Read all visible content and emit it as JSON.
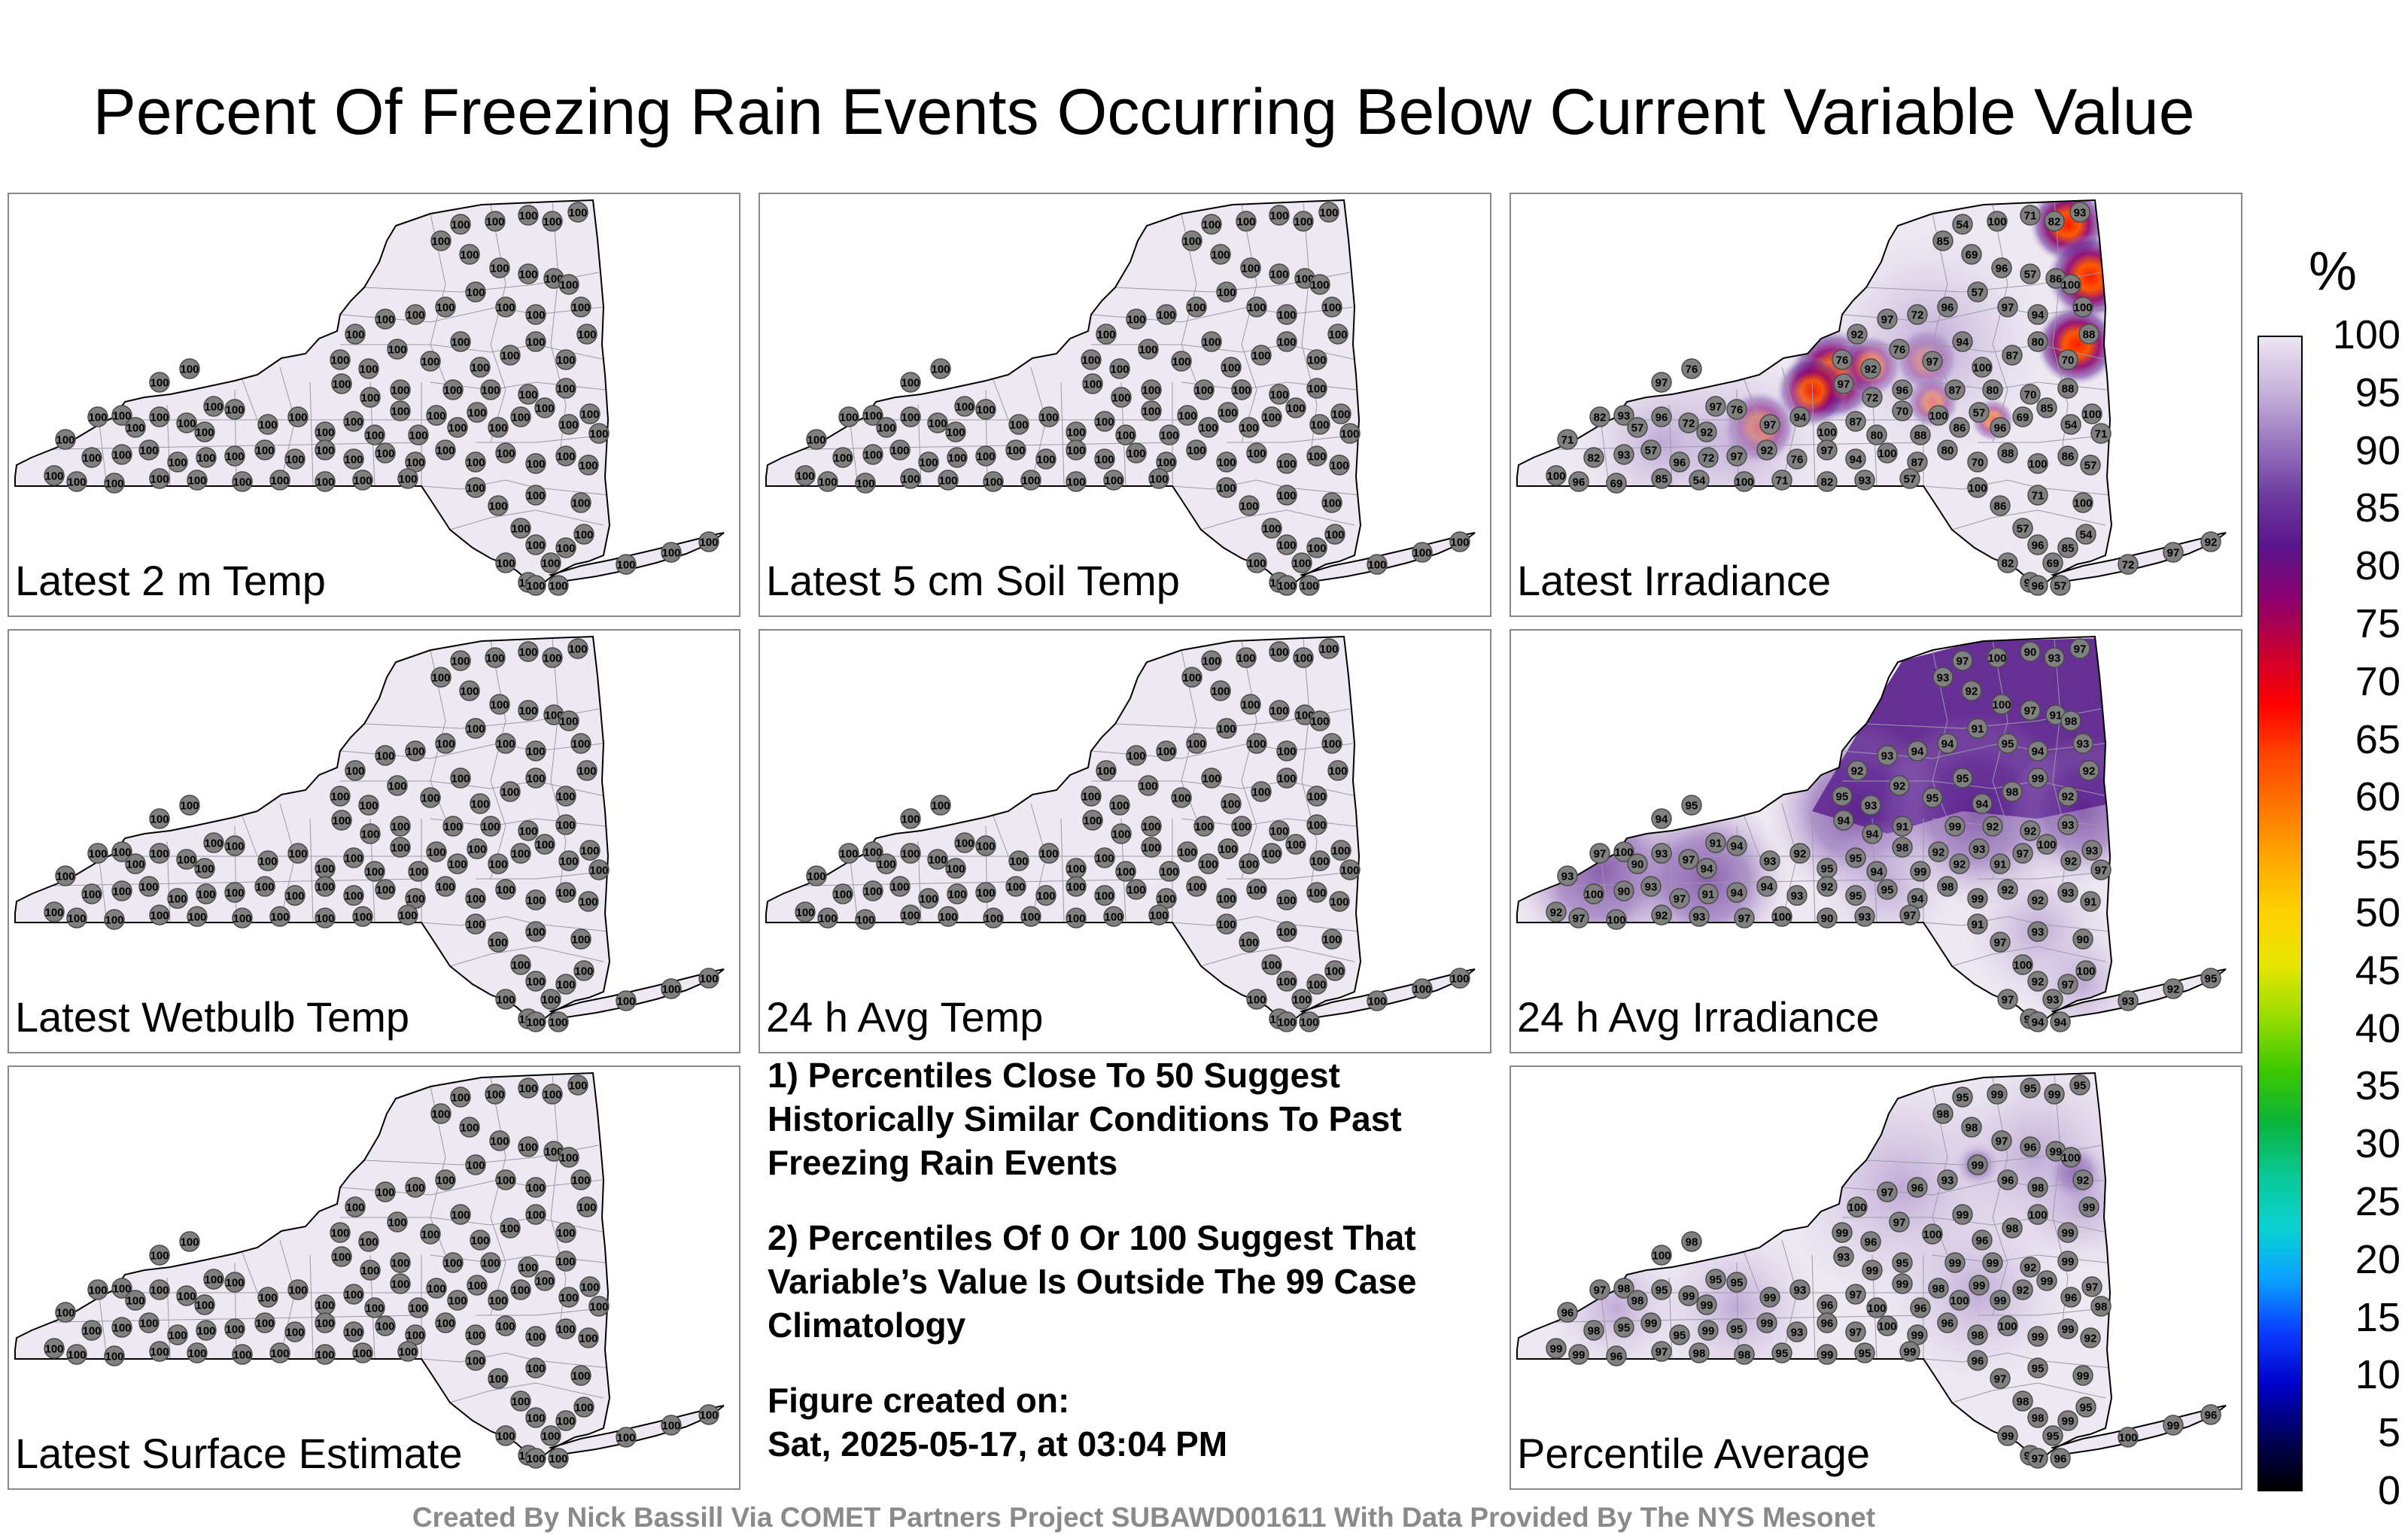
{
  "title": "Percent Of Freezing Rain Events Occurring Below Current Variable Value",
  "panels": [
    {
      "label": "Latest 2 m Temp",
      "mode": "uniform",
      "values": [
        "100"
      ]
    },
    {
      "label": "Latest 5 cm Soil Temp",
      "mode": "uniform",
      "values": [
        "100"
      ]
    },
    {
      "label": "Latest Irradiance",
      "mode": "hot",
      "values": [
        "100",
        "97",
        "80",
        "69",
        "57",
        "94",
        "86",
        "71",
        "92",
        "70",
        "85",
        "96",
        "100",
        "57",
        "82",
        "76",
        "88",
        "54",
        "72",
        "87",
        "96",
        "93",
        "97",
        "100"
      ]
    },
    {
      "label": "Latest Wetbulb Temp",
      "mode": "uniform",
      "values": [
        "100"
      ]
    },
    {
      "label": "24 h Avg Temp",
      "mode": "uniform",
      "values": [
        "100"
      ]
    },
    {
      "label": "24 h Avg Irradiance",
      "mode": "purple",
      "values": [
        "92",
        "93",
        "91",
        "91",
        "92",
        "90",
        "94",
        "93",
        "92",
        "97",
        "94",
        "92",
        "93",
        "98",
        "97",
        "95",
        "100",
        "94",
        "93",
        "97",
        "99",
        "100",
        "95"
      ]
    },
    {
      "label": "Latest Surface Estimate",
      "mode": "uniform",
      "values": [
        "100"
      ]
    },
    {
      "label": "Percentile Average",
      "mode": "light",
      "values": [
        "99",
        "99",
        "96",
        "97",
        "99",
        "95",
        "98",
        "96",
        "99",
        "98",
        "100",
        "93",
        "99",
        "95",
        "97",
        "92",
        "100",
        "99",
        "96",
        "95",
        "99",
        "98"
      ]
    }
  ],
  "notes": [
    "1) Percentiles Close To 50 Suggest Historically Similar Conditions To Past Freezing Rain Events",
    "2) Percentiles Of 0 Or 100 Suggest That Variable’s Value Is Outside The 99 Case Climatology",
    "Figure created on:",
    "Sat, 2025-05-17, at 03:04 PM"
  ],
  "colorbar": {
    "unit": "%",
    "ticks": [
      "100",
      "95",
      "90",
      "85",
      "80",
      "75",
      "70",
      "65",
      "60",
      "55",
      "50",
      "45",
      "40",
      "35",
      "30",
      "25",
      "20",
      "15",
      "10",
      "5",
      "0"
    ],
    "colors": [
      "#000000",
      "#00005a",
      "#0000c8",
      "#0a3cff",
      "#0aa0ff",
      "#0ad2d2",
      "#0ac896",
      "#0ab43c",
      "#3cc800",
      "#96dc00",
      "#e6e600",
      "#ffd200",
      "#ffaa00",
      "#ff7800",
      "#ff4600",
      "#ff0000",
      "#c80032",
      "#8c006e",
      "#5a148c",
      "#6e3ca0",
      "#9a78c0",
      "#c8b4dc",
      "#ece6f2"
    ],
    "map_fill": "#ede8f1"
  },
  "credit": "Created By Nick Bassill Via COMET Partners Project SUBAWD001611 With Data Provided By The NYS Mesonet"
}
